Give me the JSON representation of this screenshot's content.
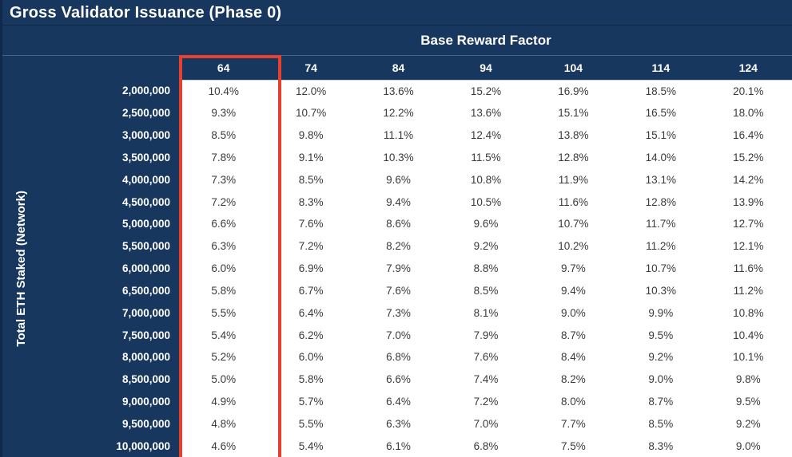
{
  "title": "Gross Validator Issuance (Phase 0)",
  "colors": {
    "navy": "#17375E",
    "highlight_red": "#E8402F",
    "data_text": "#3A3A3A",
    "header_text": "#FFFFFF"
  },
  "chart_data": {
    "type": "table",
    "title": "Gross Validator Issuance (Phase 0)",
    "column_group_label": "Base Reward Factor",
    "row_group_label": "Total ETH Staked (Network)",
    "columns": [
      "64",
      "74",
      "84",
      "94",
      "104",
      "114",
      "124"
    ],
    "highlighted_column": "64",
    "row_labels": [
      "2,000,000",
      "2,500,000",
      "3,000,000",
      "3,500,000",
      "4,000,000",
      "4,500,000",
      "5,000,000",
      "5,500,000",
      "6,000,000",
      "6,500,000",
      "7,000,000",
      "7,500,000",
      "8,000,000",
      "8,500,000",
      "9,000,000",
      "9,500,000",
      "10,000,000"
    ],
    "values": [
      [
        "10.4%",
        "12.0%",
        "13.6%",
        "15.2%",
        "16.9%",
        "18.5%",
        "20.1%"
      ],
      [
        "9.3%",
        "10.7%",
        "12.2%",
        "13.6%",
        "15.1%",
        "16.5%",
        "18.0%"
      ],
      [
        "8.5%",
        "9.8%",
        "11.1%",
        "12.4%",
        "13.8%",
        "15.1%",
        "16.4%"
      ],
      [
        "7.8%",
        "9.1%",
        "10.3%",
        "11.5%",
        "12.8%",
        "14.0%",
        "15.2%"
      ],
      [
        "7.3%",
        "8.5%",
        "9.6%",
        "10.8%",
        "11.9%",
        "13.1%",
        "14.2%"
      ],
      [
        "7.2%",
        "8.3%",
        "9.4%",
        "10.5%",
        "11.6%",
        "12.8%",
        "13.9%"
      ],
      [
        "6.6%",
        "7.6%",
        "8.6%",
        "9.6%",
        "10.7%",
        "11.7%",
        "12.7%"
      ],
      [
        "6.3%",
        "7.2%",
        "8.2%",
        "9.2%",
        "10.2%",
        "11.2%",
        "12.1%"
      ],
      [
        "6.0%",
        "6.9%",
        "7.9%",
        "8.8%",
        "9.7%",
        "10.7%",
        "11.6%"
      ],
      [
        "5.8%",
        "6.7%",
        "7.6%",
        "8.5%",
        "9.4%",
        "10.3%",
        "11.2%"
      ],
      [
        "5.5%",
        "6.4%",
        "7.3%",
        "8.1%",
        "9.0%",
        "9.9%",
        "10.8%"
      ],
      [
        "5.4%",
        "6.2%",
        "7.0%",
        "7.9%",
        "8.7%",
        "9.5%",
        "10.4%"
      ],
      [
        "5.2%",
        "6.0%",
        "6.8%",
        "7.6%",
        "8.4%",
        "9.2%",
        "10.1%"
      ],
      [
        "5.0%",
        "5.8%",
        "6.6%",
        "7.4%",
        "8.2%",
        "9.0%",
        "9.8%"
      ],
      [
        "4.9%",
        "5.7%",
        "6.4%",
        "7.2%",
        "8.0%",
        "8.7%",
        "9.5%"
      ],
      [
        "4.8%",
        "5.5%",
        "6.3%",
        "7.0%",
        "7.7%",
        "8.5%",
        "9.2%"
      ],
      [
        "4.6%",
        "5.4%",
        "6.1%",
        "6.8%",
        "7.5%",
        "8.3%",
        "9.0%"
      ]
    ]
  }
}
